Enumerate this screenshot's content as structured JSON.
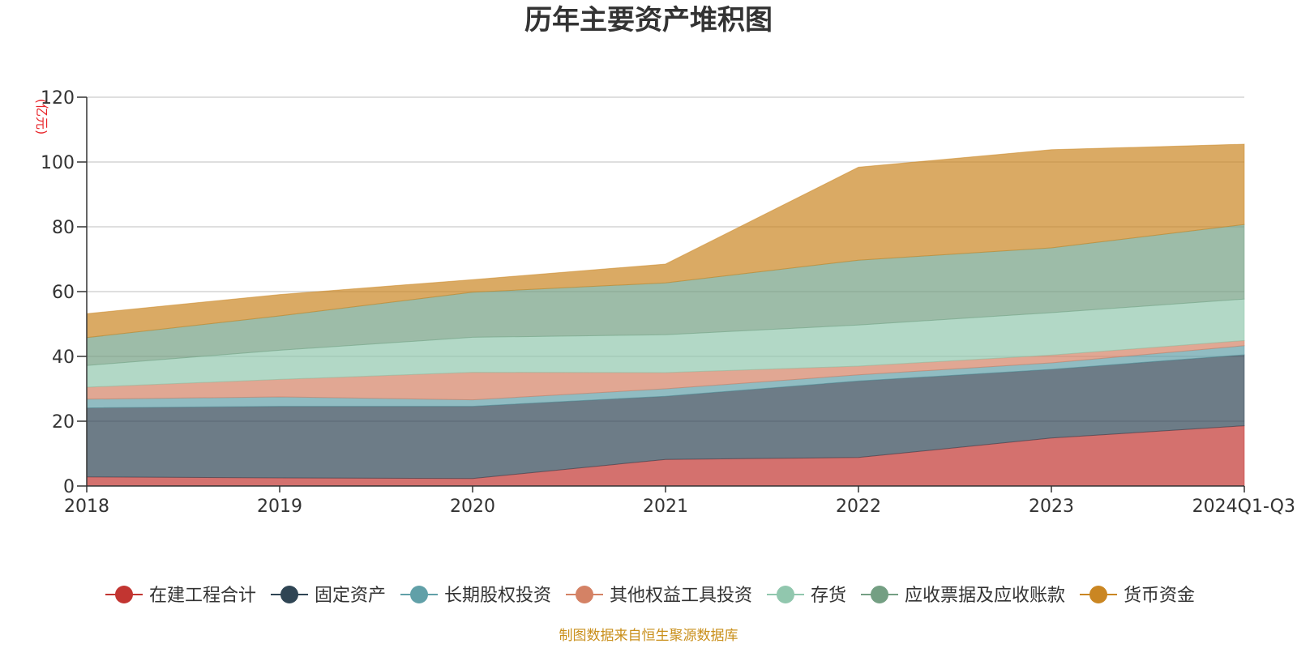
{
  "colors": {
    "在建工程合计": "#c23531",
    "固定资产": "#2f4554",
    "长期股权投资": "#61a0a8",
    "其他权益工具投资": "#d48265",
    "存货": "#91c7ae",
    "应收票据及应收账款": "#749f83",
    "货币资金": "#ca8622"
  },
  "chart_data": {
    "type": "area",
    "stacked": true,
    "title": "历年主要资产堆积图",
    "unit_label": "(亿元)",
    "xlabel": "",
    "ylabel": "",
    "categories": [
      "2018",
      "2019",
      "2020",
      "2021",
      "2022",
      "2023",
      "2024Q1-Q3"
    ],
    "ylim": [
      0,
      120
    ],
    "yticks": [
      0,
      20,
      40,
      60,
      80,
      100,
      120
    ],
    "grid": true,
    "legend_position": "bottom",
    "series": [
      {
        "name": "在建工程合计",
        "values": [
          2.8,
          2.5,
          2.3,
          8.2,
          8.8,
          14.8,
          18.6
        ]
      },
      {
        "name": "固定资产",
        "values": [
          21.3,
          22.1,
          22.3,
          19.5,
          23.6,
          21.2,
          21.9
        ]
      },
      {
        "name": "长期股权投资",
        "values": [
          2.7,
          2.9,
          2.0,
          2.3,
          1.9,
          2.0,
          2.8
        ]
      },
      {
        "name": "其他权益工具投资",
        "values": [
          3.7,
          5.4,
          8.5,
          5.0,
          2.7,
          2.4,
          1.6
        ]
      },
      {
        "name": "存货",
        "values": [
          6.7,
          9.0,
          10.8,
          11.7,
          12.7,
          13.1,
          12.8
        ]
      },
      {
        "name": "应收票据及应收账款",
        "values": [
          8.6,
          10.6,
          13.9,
          16.0,
          20.0,
          20.0,
          23.0
        ]
      },
      {
        "name": "货币资金",
        "values": [
          7.4,
          6.6,
          3.9,
          5.8,
          28.7,
          30.3,
          24.8
        ]
      }
    ],
    "source_note": "制图数据来自恒生聚源数据库"
  }
}
